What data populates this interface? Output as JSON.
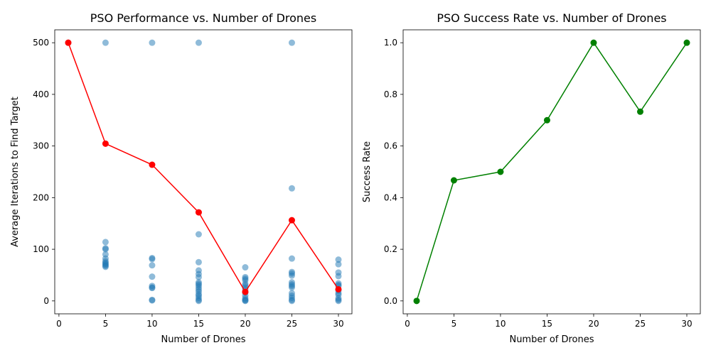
{
  "chart_data": [
    {
      "type": "scatter",
      "title": "PSO Performance vs. Number of Drones",
      "xlabel": "Number of Drones",
      "ylabel": "Average Iterations to Find Target",
      "xlim": [
        -0.45,
        31.45
      ],
      "ylim": [
        -25,
        525
      ],
      "xticks": [
        0,
        5,
        10,
        15,
        20,
        25,
        30
      ],
      "yticks": [
        0,
        100,
        200,
        300,
        400,
        500
      ],
      "grid": false,
      "series": [
        {
          "kind": "scatter",
          "color": "#1f77b4",
          "opacity": 0.5,
          "points": [
            [
              1,
              500
            ],
            [
              5,
              500
            ],
            [
              5,
              114
            ],
            [
              5,
              102
            ],
            [
              5,
              100
            ],
            [
              5,
              90
            ],
            [
              5,
              82
            ],
            [
              5,
              77
            ],
            [
              5,
              74
            ],
            [
              5,
              72
            ],
            [
              5,
              70
            ],
            [
              5,
              68
            ],
            [
              5,
              66
            ],
            [
              10,
              500
            ],
            [
              10,
              83
            ],
            [
              10,
              81
            ],
            [
              10,
              69
            ],
            [
              10,
              47
            ],
            [
              10,
              29
            ],
            [
              10,
              26
            ],
            [
              10,
              25
            ],
            [
              10,
              2
            ],
            [
              10,
              1
            ],
            [
              15,
              500
            ],
            [
              15,
              129
            ],
            [
              15,
              75
            ],
            [
              15,
              59
            ],
            [
              15,
              52
            ],
            [
              15,
              46
            ],
            [
              15,
              36
            ],
            [
              15,
              33
            ],
            [
              15,
              30
            ],
            [
              15,
              26
            ],
            [
              15,
              22
            ],
            [
              15,
              18
            ],
            [
              15,
              13
            ],
            [
              15,
              10
            ],
            [
              15,
              6
            ],
            [
              15,
              2
            ],
            [
              15,
              0
            ],
            [
              20,
              65
            ],
            [
              20,
              46
            ],
            [
              20,
              43
            ],
            [
              20,
              40
            ],
            [
              20,
              33
            ],
            [
              20,
              30
            ],
            [
              20,
              26
            ],
            [
              20,
              22
            ],
            [
              20,
              16
            ],
            [
              20,
              10
            ],
            [
              20,
              5
            ],
            [
              20,
              2
            ],
            [
              20,
              1
            ],
            [
              20,
              0
            ],
            [
              25,
              500
            ],
            [
              25,
              218
            ],
            [
              25,
              82
            ],
            [
              25,
              56
            ],
            [
              25,
              53
            ],
            [
              25,
              49
            ],
            [
              25,
              36
            ],
            [
              25,
              32
            ],
            [
              25,
              29
            ],
            [
              25,
              26
            ],
            [
              25,
              15
            ],
            [
              25,
              10
            ],
            [
              25,
              6
            ],
            [
              25,
              2
            ],
            [
              25,
              0
            ],
            [
              30,
              80
            ],
            [
              30,
              71
            ],
            [
              30,
              55
            ],
            [
              30,
              48
            ],
            [
              30,
              34
            ],
            [
              30,
              31
            ],
            [
              30,
              29
            ],
            [
              30,
              20
            ],
            [
              30,
              15
            ],
            [
              30,
              12
            ],
            [
              30,
              5
            ],
            [
              30,
              2
            ],
            [
              30,
              0
            ]
          ]
        },
        {
          "kind": "line",
          "color": "#ff0000",
          "marker": "o",
          "x": [
            1,
            5,
            10,
            15,
            20,
            25,
            30
          ],
          "y": [
            500,
            304.5,
            263.7,
            171.5,
            17.5,
            156.3,
            22.5
          ]
        }
      ]
    },
    {
      "type": "line",
      "title": "PSO Success Rate vs. Number of Drones",
      "xlabel": "Number of Drones",
      "ylabel": "Success Rate",
      "xlim": [
        -0.45,
        31.45
      ],
      "ylim": [
        -0.05,
        1.05
      ],
      "xticks": [
        0,
        5,
        10,
        15,
        20,
        25,
        30
      ],
      "yticks": [
        "0.0",
        "0.2",
        "0.4",
        "0.6",
        "0.8",
        "1.0"
      ],
      "grid": false,
      "series": [
        {
          "kind": "line",
          "color": "#008000",
          "marker": "o",
          "x": [
            1,
            5,
            10,
            15,
            20,
            25,
            30
          ],
          "y": [
            0.0,
            0.467,
            0.5,
            0.7,
            1.0,
            0.733,
            1.0
          ]
        }
      ]
    }
  ]
}
